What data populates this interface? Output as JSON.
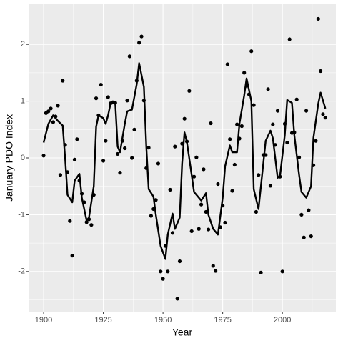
{
  "chart_data": {
    "type": "scatter",
    "xlabel": "Year",
    "ylabel": "January PDO Index",
    "xlim": [
      1893.7,
      2022.4
    ],
    "ylim": [
      -2.72,
      2.72
    ],
    "xticks": [
      1900,
      1925,
      1950,
      1975,
      2000
    ],
    "yticks": [
      -2,
      -1,
      0,
      1,
      2
    ],
    "xminor": [
      1912.5,
      1937.5,
      1962.5,
      1987.5,
      2012.5
    ],
    "yminor": [
      -2.5,
      -1.5,
      -0.5,
      0.5,
      1.5,
      2.5
    ],
    "grid": true,
    "series": [
      {
        "type": "scatter",
        "color": "#000000",
        "x": [
          1900,
          1901,
          1902,
          1903,
          1904,
          1905,
          1906,
          1907,
          1908,
          1909,
          1910,
          1911,
          1912,
          1913,
          1914,
          1915,
          1916,
          1917,
          1918,
          1919,
          1920,
          1921,
          1922,
          1923,
          1924,
          1925,
          1926,
          1927,
          1928,
          1929,
          1930,
          1931,
          1932,
          1933,
          1934,
          1935,
          1936,
          1937,
          1938,
          1939,
          1940,
          1941,
          1942,
          1943,
          1944,
          1945,
          1946,
          1947,
          1948,
          1949,
          1950,
          1951,
          1952,
          1953,
          1954,
          1955,
          1956,
          1957,
          1958,
          1959,
          1960,
          1961,
          1962,
          1963,
          1964,
          1965,
          1966,
          1967,
          1968,
          1969,
          1970,
          1971,
          1972,
          1973,
          1974,
          1975,
          1976,
          1977,
          1978,
          1979,
          1980,
          1981,
          1982,
          1983,
          1984,
          1985,
          1986,
          1987,
          1988,
          1989,
          1990,
          1991,
          1992,
          1993,
          1994,
          1995,
          1996,
          1997,
          1998,
          1999,
          2000,
          2001,
          2002,
          2003,
          2004,
          2005,
          2006,
          2007,
          2008,
          2009,
          2010,
          2011,
          2012,
          2013,
          2014,
          2015,
          2016,
          2017,
          2018
        ],
        "values": [
          0.04,
          0.79,
          0.82,
          0.87,
          0.63,
          0.73,
          0.92,
          -0.3,
          1.36,
          0.23,
          -0.25,
          -1.11,
          -1.72,
          -0.03,
          0.33,
          -0.4,
          -0.63,
          -0.78,
          -1.13,
          -1.08,
          -1.18,
          -0.65,
          1.05,
          0.75,
          1.29,
          -0.05,
          0.3,
          1.07,
          0.96,
          0.98,
          0.97,
          0.07,
          -0.26,
          0.3,
          0.17,
          1.01,
          1.79,
          0.0,
          0.5,
          1.36,
          2.03,
          2.14,
          1.01,
          -0.18,
          0.18,
          -1.02,
          -0.9,
          -0.74,
          -0.1,
          -2.0,
          -2.13,
          -1.55,
          -2.0,
          -0.56,
          -1.32,
          0.2,
          -2.48,
          -1.82,
          0.25,
          0.69,
          0.29,
          1.18,
          -1.29,
          -0.33,
          0.01,
          -1.25,
          -0.82,
          -0.2,
          -0.95,
          -1.26,
          0.61,
          -1.9,
          -1.99,
          -0.46,
          -1.22,
          -0.84,
          -1.14,
          1.65,
          0.33,
          -0.58,
          -0.12,
          0.59,
          0.34,
          0.56,
          1.5,
          1.27,
          1.12,
          1.88,
          0.93,
          -0.95,
          -0.3,
          -2.02,
          0.05,
          0.05,
          1.21,
          -0.49,
          0.59,
          0.23,
          0.83,
          -0.33,
          -2.0,
          0.6,
          0.27,
          2.09,
          0.44,
          0.45,
          1.03,
          0.01,
          -1.0,
          -1.4,
          0.83,
          -0.92,
          -1.38,
          -0.13,
          0.3,
          2.45,
          1.53,
          0.77,
          0.71
        ]
      },
      {
        "type": "line",
        "color": "#000000",
        "x": [
          1900,
          1902,
          1904,
          1906,
          1908,
          1909,
          1910,
          1912,
          1913,
          1915,
          1916,
          1918,
          1919,
          1921,
          1922,
          1923,
          1925,
          1926,
          1927,
          1928,
          1930,
          1931,
          1932,
          1934,
          1935,
          1937,
          1939,
          1940,
          1942,
          1943,
          1944,
          1946,
          1947,
          1949,
          1951,
          1952,
          1954,
          1955,
          1957,
          1958,
          1959,
          1960,
          1962,
          1963,
          1966,
          1968,
          1969,
          1971,
          1973,
          1975,
          1976,
          1978,
          1979,
          1981,
          1982,
          1984,
          1985,
          1987,
          1988,
          1990,
          1992,
          1993,
          1995,
          1996,
          1998,
          1999,
          2001,
          2002,
          2004,
          2005,
          2007,
          2008,
          2010,
          2012,
          2013,
          2015,
          2016,
          2018
        ],
        "values": [
          0.27,
          0.6,
          0.75,
          0.65,
          0.57,
          0.0,
          -0.65,
          -0.78,
          -0.4,
          -0.28,
          -0.7,
          -1.1,
          -1.05,
          -0.5,
          0.55,
          0.75,
          0.7,
          0.6,
          0.75,
          0.95,
          0.97,
          0.2,
          0.1,
          0.6,
          0.82,
          0.85,
          1.3,
          1.67,
          1.25,
          0.2,
          -0.55,
          -0.68,
          -1.0,
          -1.55,
          -1.78,
          -1.35,
          -0.98,
          -1.25,
          -1.05,
          -0.1,
          0.45,
          0.28,
          -0.3,
          -0.6,
          -0.75,
          -0.62,
          -1.0,
          -1.25,
          -1.35,
          -0.7,
          -0.15,
          0.22,
          0.1,
          0.1,
          0.6,
          1.1,
          1.4,
          1.0,
          -0.55,
          -0.9,
          -0.1,
          0.3,
          0.48,
          0.35,
          -0.35,
          -0.32,
          0.4,
          1.02,
          0.97,
          0.4,
          -0.3,
          -0.6,
          -0.7,
          -0.5,
          0.35,
          0.95,
          1.15,
          0.87
        ]
      }
    ]
  }
}
